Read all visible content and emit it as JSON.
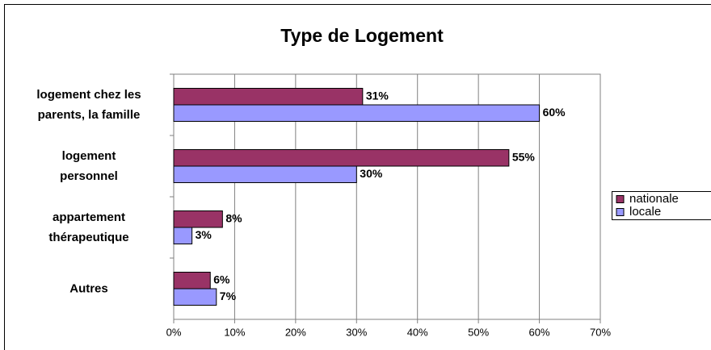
{
  "chart_data": {
    "type": "bar",
    "orientation": "horizontal",
    "title": "Type de Logement",
    "categories": [
      "logement chez les\nparents, la famille",
      "logement\npersonnel",
      "appartement\nthérapeutique",
      "Autres"
    ],
    "series": [
      {
        "name": "nationale",
        "color": "#993366",
        "values": [
          31,
          55,
          8,
          6
        ],
        "value_labels": [
          "31%",
          "55%",
          "8%",
          "6%"
        ]
      },
      {
        "name": "locale",
        "color": "#9999ff",
        "values": [
          60,
          30,
          3,
          7
        ],
        "value_labels": [
          "60%",
          "30%",
          "3%",
          "7%"
        ]
      }
    ],
    "xlim": [
      0,
      70
    ],
    "xticks": [
      {
        "value": 0,
        "label": "0%"
      },
      {
        "value": 10,
        "label": "10%"
      },
      {
        "value": 20,
        "label": "20%"
      },
      {
        "value": 30,
        "label": "30%"
      },
      {
        "value": 40,
        "label": "40%"
      },
      {
        "value": 50,
        "label": "50%"
      },
      {
        "value": 60,
        "label": "60%"
      },
      {
        "value": 70,
        "label": "70%"
      }
    ],
    "grid": true,
    "legend": "right"
  }
}
